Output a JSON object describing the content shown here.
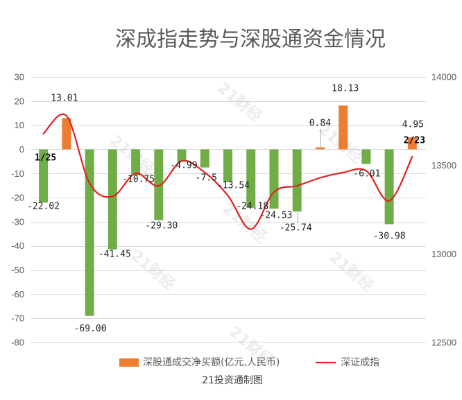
{
  "chart_data": {
    "type": "bar",
    "title": "深成指走势与深股通资金情况",
    "categories": [
      "1/25",
      "",
      "",
      "",
      "",
      "",
      "",
      "",
      "",
      "",
      "",
      "",
      "",
      "",
      "",
      "",
      "2/23"
    ],
    "series": [
      {
        "name": "深股通成交净买额(亿元,人民币)",
        "type": "bar",
        "axis": "left",
        "values": [
          -22.02,
          13.01,
          -69.0,
          -41.45,
          -10.75,
          -29.3,
          -4.99,
          -7.5,
          -13.54,
          -24.18,
          -24.53,
          -25.74,
          0.84,
          18.13,
          -6.01,
          -30.98,
          4.95
        ],
        "labels": [
          "-22.02",
          "13.01",
          "-69.00",
          "-41.45",
          "-10.75",
          "-29.30",
          "-4.99",
          "-7.5",
          "-13.54",
          "-24.18",
          "-24.53",
          "-25.74",
          "0.84",
          "18.13",
          "-6.01",
          "-30.98",
          "4.95"
        ],
        "colors": {
          "positive": "#ED7D31",
          "negative": "#70AD47"
        }
      },
      {
        "name": "深证成指",
        "type": "line",
        "axis": "right",
        "smooth": true,
        "values": [
          13680,
          13780,
          13400,
          13325,
          13455,
          13385,
          13525,
          13460,
          13330,
          13140,
          13350,
          13385,
          13430,
          13460,
          13470,
          13300,
          13550
        ],
        "color": "#E3201F"
      }
    ],
    "y_left": {
      "range": [
        -80,
        30
      ],
      "ticks": [
        30,
        20,
        10,
        0,
        -10,
        -20,
        -30,
        -40,
        -50,
        -60,
        -70,
        -80
      ]
    },
    "y_right": {
      "range": [
        12500,
        14000
      ],
      "ticks": [
        14000,
        13500,
        13000,
        12500
      ]
    },
    "grid": true,
    "legend": "bottom"
  },
  "watermark": "21财经",
  "footer": "21投资通制图",
  "colors": {
    "grid": "#D9D9D9",
    "axis_text": "#595959",
    "title": "#595959"
  }
}
